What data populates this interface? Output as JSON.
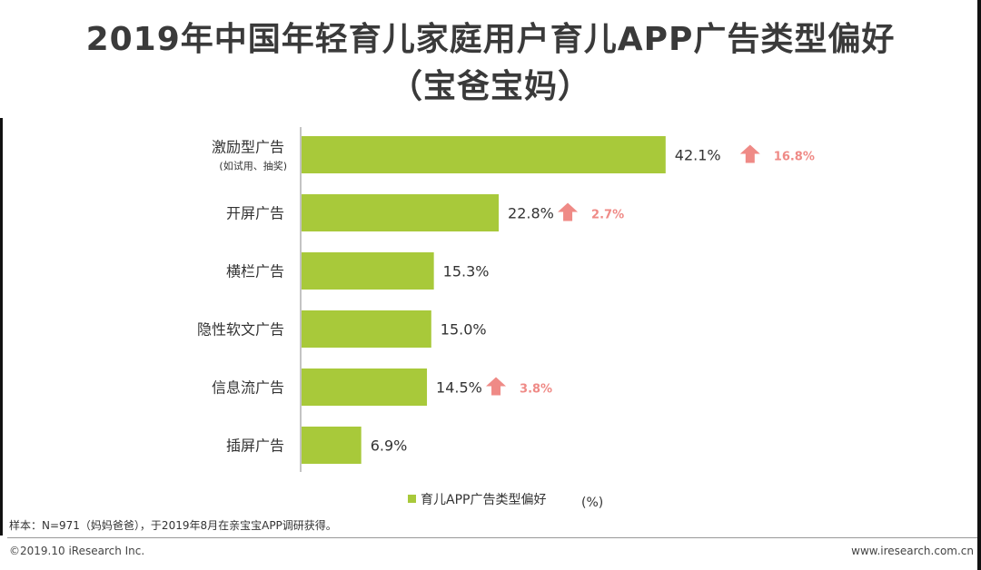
{
  "title_line1": "2019年中国年轻育儿家庭用户育儿APP广告类型偏好",
  "title_line2": "（宝爸宝妈）",
  "colors": {
    "bar": "#a8c93a",
    "delta": "#ef8a86",
    "text": "#333333"
  },
  "chart_data": {
    "type": "bar",
    "orientation": "horizontal",
    "categories": [
      "激励型广告",
      "开屏广告",
      "横栏广告",
      "隐性软文广告",
      "信息流广告",
      "插屏广告"
    ],
    "category_notes": [
      "(如试用、抽奖)",
      "",
      "",
      "",
      "",
      ""
    ],
    "values": [
      42.1,
      22.8,
      15.3,
      15.0,
      14.5,
      6.9
    ],
    "value_labels": [
      "42.1%",
      "22.8%",
      "15.3%",
      "15.0%",
      "14.5%",
      "6.9%"
    ],
    "deltas": [
      "16.8%",
      "2.7%",
      null,
      null,
      "3.8%",
      null
    ],
    "series_name": "育儿APP广告类型偏好",
    "unit": "(%)",
    "legend_position": "bottom"
  },
  "footnote": "样本：N=971（妈妈爸爸），于2019年8月在亲宝宝APP调研获得。",
  "copyright": "©2019.10 iResearch Inc.",
  "website": "www.iresearch.com.cn"
}
